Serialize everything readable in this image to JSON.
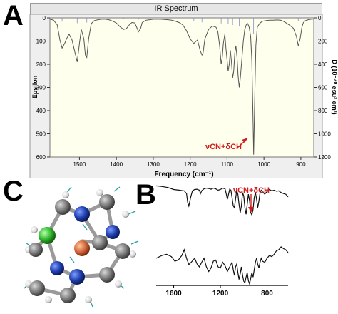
{
  "panels": {
    "a_letter": "A",
    "b_letter": "B",
    "c_letter": "C"
  },
  "colors": {
    "plot_bg": "#ffffee",
    "line": "#555555",
    "stick": "#8a8ad0",
    "annotation": "#d21c1c"
  },
  "chart_data": [
    {
      "type": "line",
      "title": "IR Spectrum",
      "xlabel": "Frequency (cm⁻¹)",
      "ylabel": "Epsilon",
      "y2label": "D (10⁻⁴⁰ esu² cm²)",
      "xlim": [
        1580,
        865
      ],
      "ylim": [
        600,
        0
      ],
      "y2lim": [
        1200,
        0
      ],
      "x_ticks": [
        "1500",
        "1400",
        "1300",
        "1200",
        "1100",
        "1000",
        "900"
      ],
      "y_ticks": [
        "0",
        "100",
        "200",
        "300",
        "400",
        "500",
        "600"
      ],
      "y2_ticks": [
        "0",
        "200",
        "400",
        "600",
        "800",
        "1000",
        "1200"
      ],
      "grid": false,
      "annotation": "νCN+δCH",
      "x": [
        1580,
        1570,
        1560,
        1553,
        1547,
        1540,
        1535,
        1528,
        1520,
        1512,
        1506,
        1500,
        1495,
        1488,
        1484,
        1480,
        1475,
        1468,
        1460,
        1450,
        1440,
        1430,
        1420,
        1410,
        1400,
        1390,
        1380,
        1372,
        1365,
        1358,
        1350,
        1345,
        1340,
        1334,
        1330,
        1320,
        1310,
        1300,
        1290,
        1280,
        1270,
        1260,
        1250,
        1240,
        1230,
        1220,
        1210,
        1200,
        1190,
        1180,
        1173,
        1168,
        1165,
        1160,
        1150,
        1140,
        1130,
        1125,
        1120,
        1116,
        1113,
        1110,
        1106,
        1103,
        1100,
        1097,
        1094,
        1091,
        1088,
        1085,
        1082,
        1079,
        1076,
        1073,
        1070,
        1067,
        1064,
        1060,
        1056,
        1052,
        1048,
        1044,
        1040,
        1036,
        1033,
        1030,
        1028,
        1025,
        1022,
        1018,
        1012,
        1005,
        995,
        985,
        975,
        965,
        955,
        948,
        940,
        930,
        920,
        912,
        907,
        902,
        897,
        893,
        888,
        880,
        872,
        865
      ],
      "y": [
        5,
        10,
        30,
        95,
        130,
        110,
        90,
        70,
        95,
        150,
        190,
        110,
        50,
        90,
        160,
        170,
        90,
        25,
        12,
        8,
        6,
        6,
        8,
        14,
        22,
        38,
        50,
        45,
        30,
        20,
        22,
        40,
        60,
        45,
        20,
        10,
        8,
        6,
        6,
        6,
        7,
        8,
        10,
        14,
        20,
        30,
        55,
        90,
        110,
        95,
        140,
        160,
        150,
        90,
        50,
        35,
        40,
        60,
        120,
        200,
        170,
        110,
        70,
        130,
        180,
        230,
        200,
        140,
        190,
        260,
        230,
        150,
        120,
        170,
        250,
        300,
        260,
        180,
        100,
        50,
        30,
        25,
        40,
        80,
        180,
        400,
        590,
        350,
        120,
        40,
        25,
        15,
        12,
        10,
        10,
        9,
        10,
        14,
        22,
        32,
        45,
        80,
        120,
        90,
        40,
        20,
        12,
        8,
        6,
        5
      ]
    },
    {
      "type": "line",
      "xlim": [
        1750,
        620
      ],
      "x_ticks": [
        "1600",
        "1200",
        "800"
      ],
      "annotation": "νCN+δCH",
      "series": [
        {
          "x": [
            1750,
            1700,
            1650,
            1600,
            1550,
            1510,
            1490,
            1480,
            1470,
            1455,
            1440,
            1420,
            1400,
            1380,
            1370,
            1360,
            1340,
            1320,
            1300,
            1280,
            1260,
            1240,
            1220,
            1200,
            1180,
            1160,
            1150,
            1140,
            1130,
            1120,
            1110,
            1100,
            1090,
            1080,
            1070,
            1060,
            1050,
            1040,
            1030,
            1020,
            1010,
            1000,
            990,
            980,
            970,
            960,
            950,
            940,
            930,
            920,
            910,
            900,
            890,
            880,
            870,
            860,
            850,
            840,
            820,
            800,
            780,
            760,
            740,
            720,
            700,
            680,
            660,
            640,
            620
          ],
          "y": [
            0.95,
            0.93,
            0.9,
            0.84,
            0.82,
            0.8,
            0.72,
            0.45,
            0.35,
            0.6,
            0.8,
            0.84,
            0.85,
            0.82,
            0.72,
            0.8,
            0.86,
            0.88,
            0.87,
            0.85,
            0.88,
            0.86,
            0.82,
            0.84,
            0.88,
            0.86,
            0.72,
            0.55,
            0.7,
            0.85,
            0.82,
            0.6,
            0.35,
            0.3,
            0.55,
            0.82,
            0.7,
            0.4,
            0.15,
            0.35,
            0.75,
            0.65,
            0.3,
            0.1,
            0.4,
            0.7,
            0.5,
            0.15,
            0.08,
            0.25,
            0.6,
            0.75,
            0.55,
            0.3,
            0.5,
            0.75,
            0.82,
            0.78,
            0.7,
            0.78,
            0.84,
            0.8,
            0.82,
            0.79,
            0.8,
            0.75,
            0.72,
            0.7,
            0.62
          ]
        },
        {
          "x": [
            1750,
            1700,
            1660,
            1620,
            1590,
            1560,
            1530,
            1510,
            1490,
            1470,
            1450,
            1420,
            1400,
            1380,
            1360,
            1340,
            1320,
            1300,
            1280,
            1260,
            1240,
            1220,
            1200,
            1180,
            1160,
            1140,
            1120,
            1100,
            1090,
            1080,
            1070,
            1060,
            1050,
            1040,
            1030,
            1020,
            1010,
            1000,
            990,
            980,
            970,
            960,
            950,
            940,
            930,
            920,
            910,
            900,
            890,
            880,
            870,
            860,
            850,
            840,
            820,
            800,
            780,
            760,
            740,
            720,
            700,
            680,
            660,
            640,
            620
          ],
          "y": [
            0.45,
            0.5,
            0.52,
            0.48,
            0.4,
            0.42,
            0.5,
            0.6,
            0.45,
            0.34,
            0.38,
            0.45,
            0.35,
            0.3,
            0.38,
            0.45,
            0.3,
            0.22,
            0.28,
            0.4,
            0.42,
            0.3,
            0.28,
            0.38,
            0.32,
            0.22,
            0.3,
            0.38,
            0.25,
            0.15,
            0.3,
            0.35,
            0.2,
            0.08,
            0.18,
            0.3,
            0.15,
            0.05,
            0.02,
            0.12,
            0.2,
            0.06,
            0.0,
            0.1,
            0.2,
            0.12,
            0.25,
            0.38,
            0.45,
            0.35,
            0.28,
            0.38,
            0.45,
            0.4,
            0.38,
            0.45,
            0.5,
            0.48,
            0.52,
            0.58,
            0.6,
            0.65,
            0.62,
            0.6,
            0.55
          ]
        }
      ]
    }
  ]
}
